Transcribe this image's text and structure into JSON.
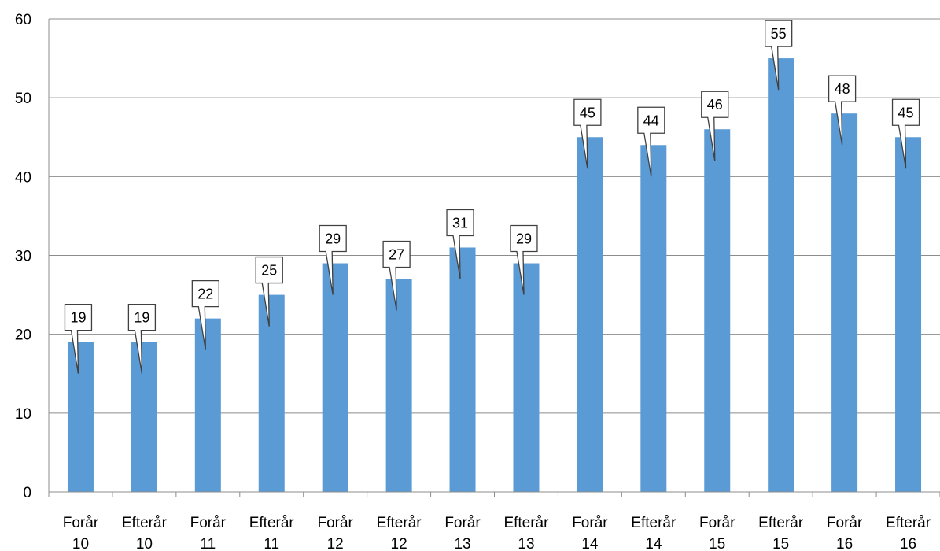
{
  "chart_data": {
    "type": "bar",
    "categories": [
      [
        "Forår",
        "10"
      ],
      [
        "Efterår",
        "10"
      ],
      [
        "Forår",
        "11"
      ],
      [
        "Efterår",
        "11"
      ],
      [
        "Forår",
        "12"
      ],
      [
        "Efterår",
        "12"
      ],
      [
        "Forår",
        "13"
      ],
      [
        "Efterår",
        "13"
      ],
      [
        "Forår",
        "14"
      ],
      [
        "Efterår",
        "14"
      ],
      [
        "Forår",
        "15"
      ],
      [
        "Efterår",
        "15"
      ],
      [
        "Forår",
        "16"
      ],
      [
        "Efterår",
        "16"
      ]
    ],
    "values": [
      19,
      19,
      22,
      25,
      29,
      27,
      31,
      29,
      45,
      44,
      46,
      55,
      48,
      45
    ],
    "ylim": [
      0,
      60
    ],
    "yticks": [
      0,
      10,
      20,
      30,
      40,
      50,
      60
    ],
    "grid": true,
    "legend": "none",
    "data_labels": "callout",
    "colors": {
      "bar": "#5b9bd5",
      "grid": "#8c8c8c",
      "axis": "#8c8c8c",
      "callout_border": "#404040",
      "callout_fill": "#ffffff"
    }
  }
}
